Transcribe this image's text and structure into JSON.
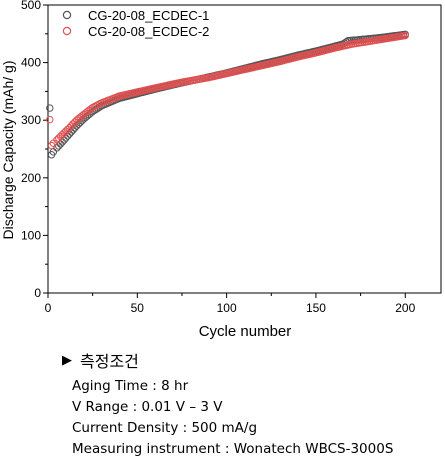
{
  "chart_data": {
    "type": "scatter",
    "xlabel": "Cycle number",
    "ylabel": "Discharge Capacity (mAh/ g)",
    "xlim": [
      0,
      220
    ],
    "ylim": [
      0,
      500
    ],
    "x_ticks": [
      "0",
      "50",
      "100",
      "150",
      "200"
    ],
    "y_ticks": [
      "0",
      "100",
      "200",
      "300",
      "400",
      "500"
    ],
    "legend_position": "top-left",
    "series": [
      {
        "name": "CG-20-08_ECDEC-1",
        "color": "#555555",
        "marker": "open-circle",
        "points": [
          [
            1,
            321
          ],
          [
            2,
            240
          ],
          [
            3,
            245
          ],
          [
            5,
            252
          ],
          [
            8,
            262
          ],
          [
            12,
            276
          ],
          [
            16,
            290
          ],
          [
            20,
            302
          ],
          [
            25,
            315
          ],
          [
            30,
            325
          ],
          [
            40,
            338
          ],
          [
            50,
            346
          ],
          [
            60,
            354
          ],
          [
            75,
            365
          ],
          [
            90,
            375
          ],
          [
            100,
            382
          ],
          [
            110,
            390
          ],
          [
            120,
            398
          ],
          [
            130,
            405
          ],
          [
            140,
            413
          ],
          [
            150,
            420
          ],
          [
            160,
            428
          ],
          [
            165,
            432
          ],
          [
            168,
            438
          ],
          [
            175,
            440
          ],
          [
            185,
            443
          ],
          [
            195,
            447
          ],
          [
            200,
            449
          ]
        ]
      },
      {
        "name": "CG-20-08_ECDEC-2",
        "color": "#e05050",
        "marker": "open-circle",
        "points": [
          [
            1,
            301
          ],
          [
            2,
            256
          ],
          [
            3,
            260
          ],
          [
            5,
            266
          ],
          [
            8,
            275
          ],
          [
            12,
            287
          ],
          [
            16,
            300
          ],
          [
            20,
            310
          ],
          [
            25,
            322
          ],
          [
            30,
            330
          ],
          [
            40,
            342
          ],
          [
            50,
            349
          ],
          [
            60,
            356
          ],
          [
            75,
            366
          ],
          [
            90,
            374
          ],
          [
            100,
            381
          ],
          [
            110,
            388
          ],
          [
            120,
            395
          ],
          [
            130,
            402
          ],
          [
            140,
            410
          ],
          [
            150,
            417
          ],
          [
            160,
            425
          ],
          [
            170,
            432
          ],
          [
            180,
            437
          ],
          [
            190,
            442
          ],
          [
            200,
            447
          ]
        ]
      }
    ]
  },
  "notes": {
    "heading": "측정조건",
    "lines": [
      "Aging Time : 8 hr",
      "V Range : 0.01 V – 3 V",
      "Current Density : 500 mA/g",
      "Measuring instrument : Wonatech WBCS-3000S"
    ]
  }
}
